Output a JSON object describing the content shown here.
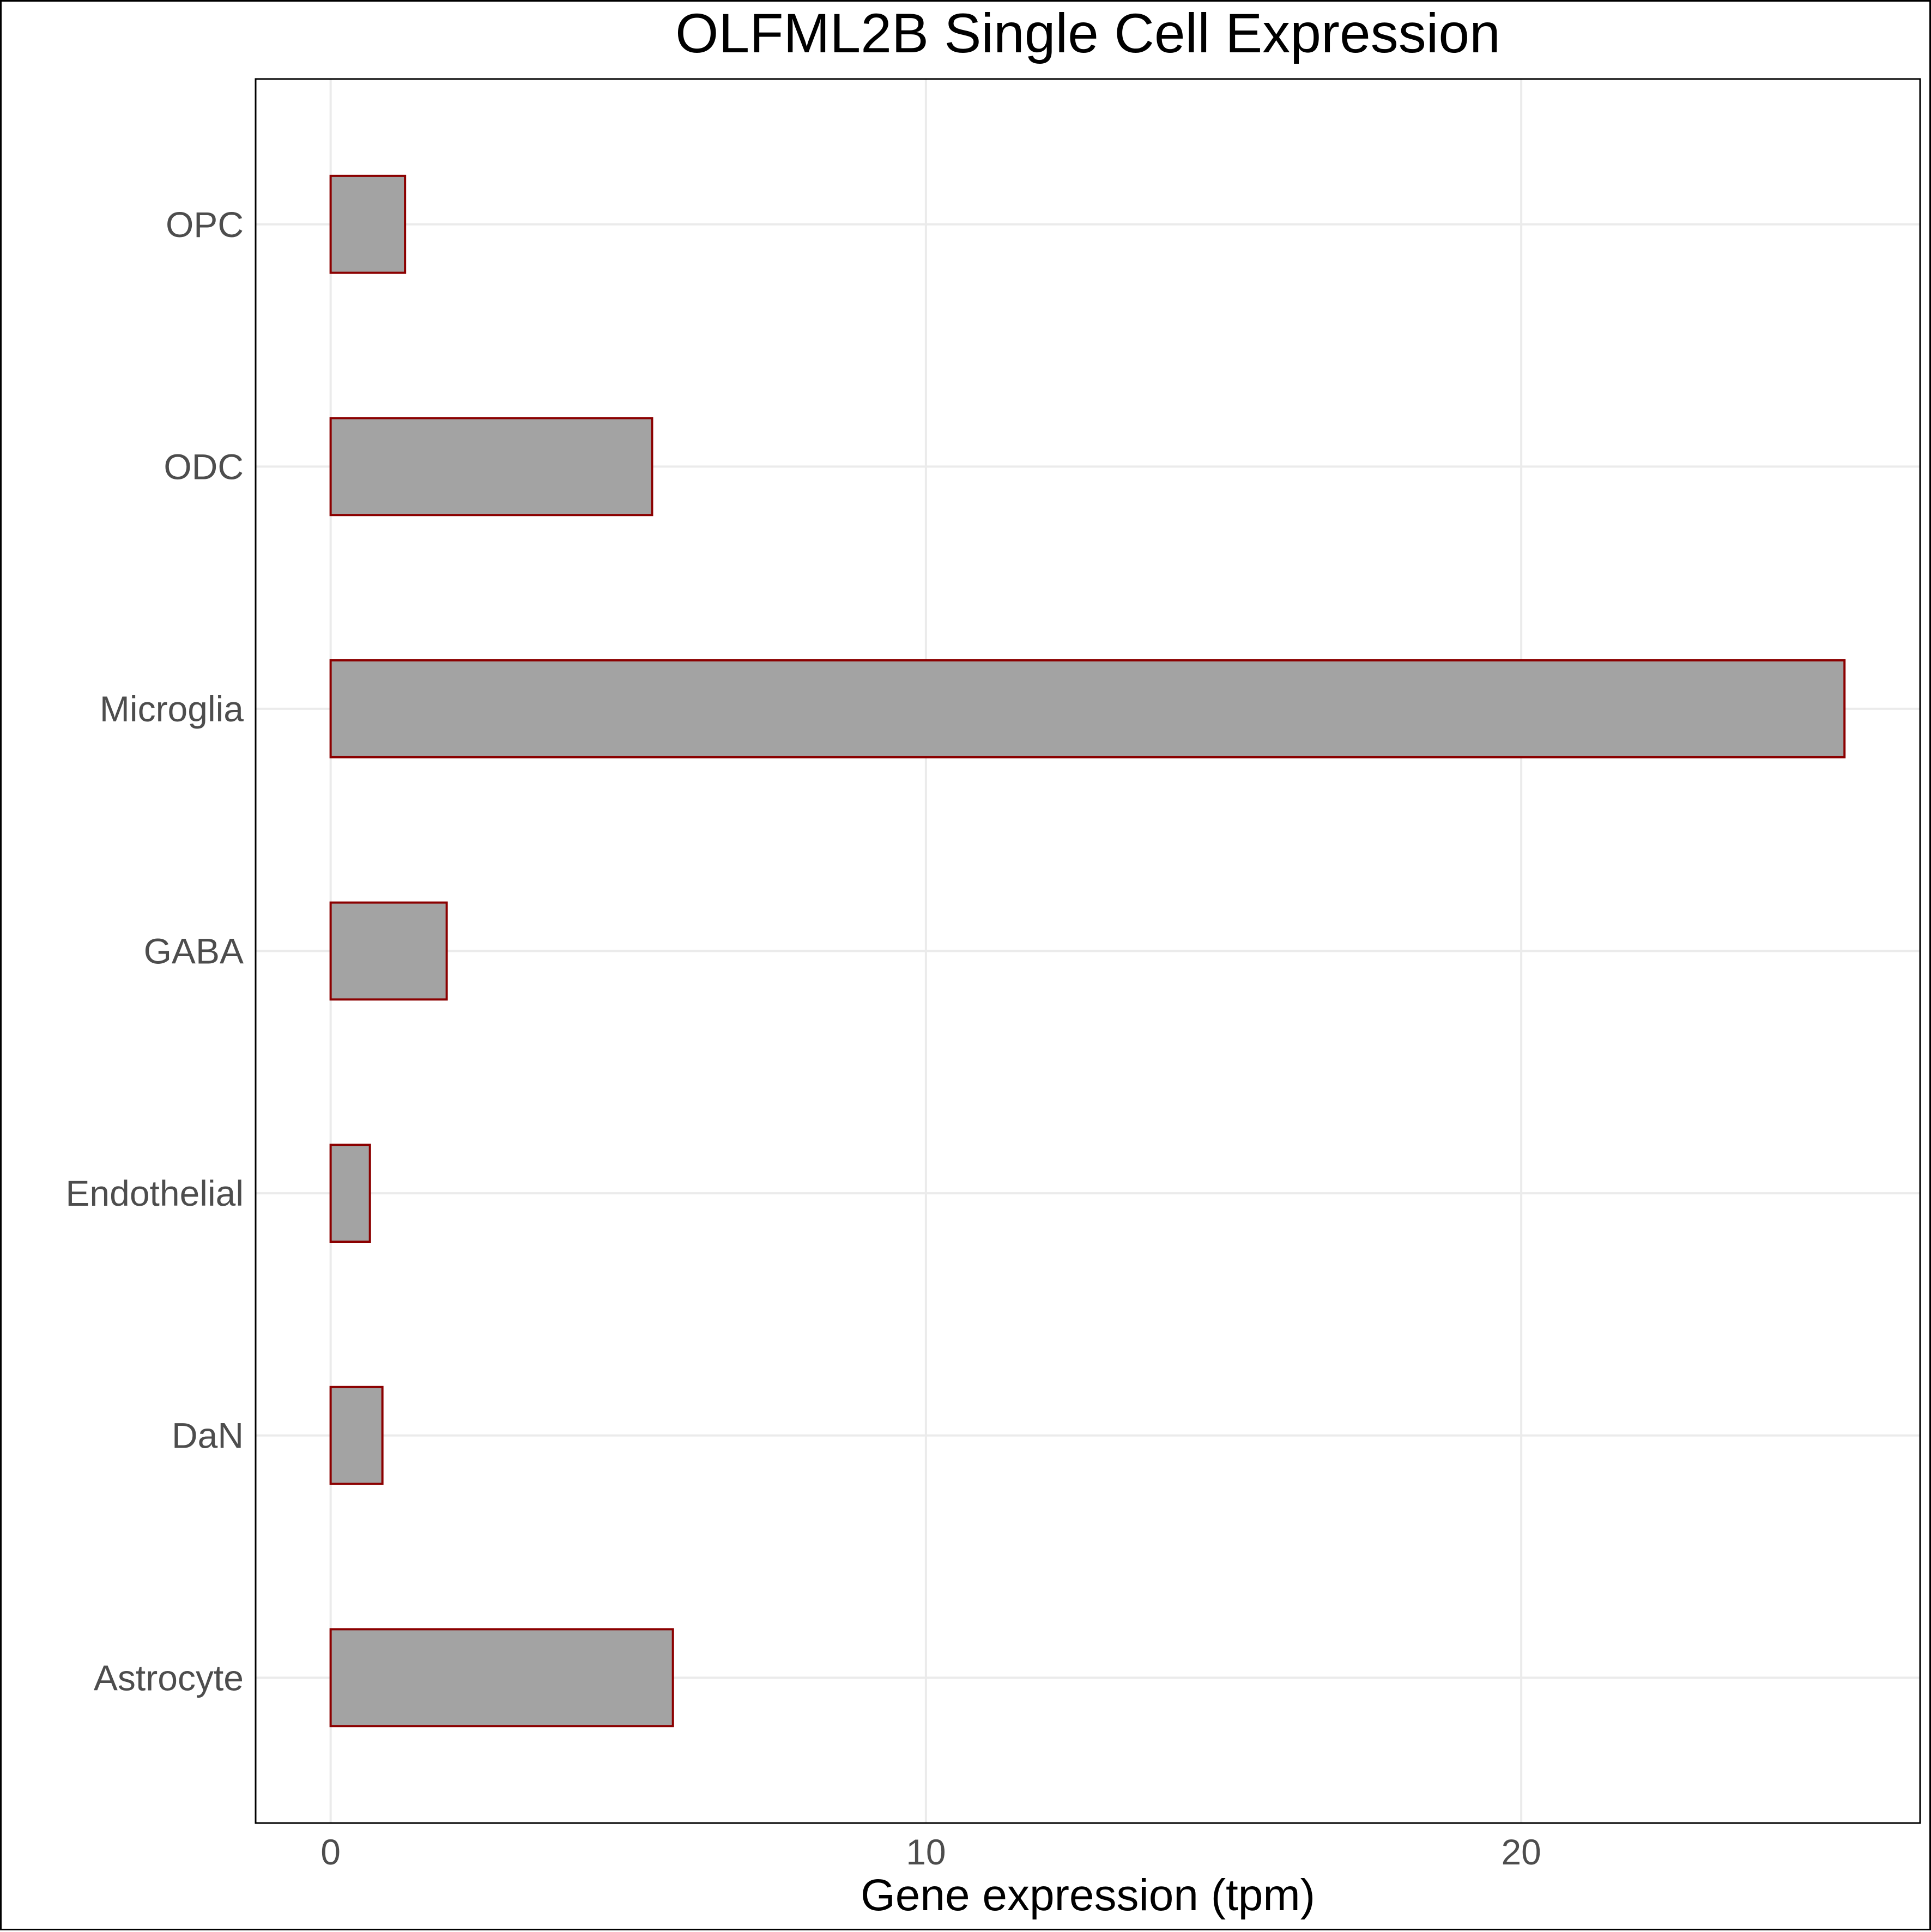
{
  "chart_data": {
    "type": "bar",
    "orientation": "horizontal",
    "title": "OLFML2B Single Cell Expression",
    "xlabel": "Gene expression (tpm)",
    "ylabel": "",
    "categories": [
      "Astrocyte",
      "DaN",
      "Endothelial",
      "GABA",
      "Microglia",
      "ODC",
      "OPC"
    ],
    "values": [
      5.75,
      0.87,
      0.66,
      1.95,
      25.43,
      5.4,
      1.25
    ],
    "xlim": [
      -1.26,
      26.7
    ],
    "xticks": [
      0,
      10,
      20
    ],
    "grid": true,
    "legend": "none",
    "colors": {
      "bar_fill": "#a3a3a3",
      "bar_outline": "#8b0000",
      "grid": "#ebebeb",
      "panel_border": "#000000",
      "tick_label": "#4d4d4d"
    }
  }
}
